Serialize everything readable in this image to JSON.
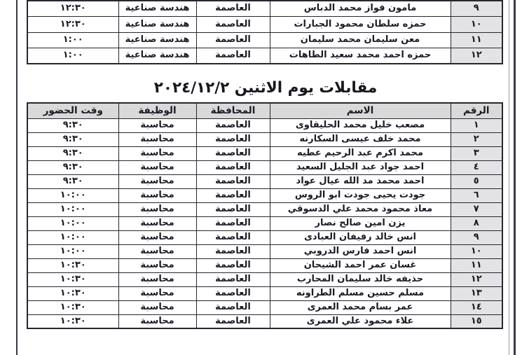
{
  "colors": {
    "border": "#26262e",
    "text": "#1b1b26",
    "header_bg": "#d9d9d9",
    "number_column_bg": "#e3e3e6",
    "page_frame": "#3a3a44"
  },
  "section_title": "مقابلات يوم الاثنين ٢٠٢٤/١٢/٢",
  "top_table": {
    "rows": [
      {
        "num": "٩",
        "name": "مامون فواز محمد الدباس",
        "governorate": "العاصمة",
        "job": "هندسة صناعية",
        "time": "١٢:٣٠"
      },
      {
        "num": "١٠",
        "name": "حمزه سلطان محمود الجبارات",
        "governorate": "العاصمة",
        "job": "هندسة صناعية",
        "time": "١٢:٣٠"
      },
      {
        "num": "١١",
        "name": "معن سليمان محمد سليمان",
        "governorate": "العاصمة",
        "job": "هندسة صناعية",
        "time": "١:٠٠"
      },
      {
        "num": "١٢",
        "name": "حمزه احمد محمد سعيد الطاهات",
        "governorate": "العاصمة",
        "job": "هندسة صناعية",
        "time": "١:٠٠"
      }
    ]
  },
  "main_table": {
    "headers": [
      "الرقم",
      "الاسم",
      "المحافظة",
      "الوظيفة",
      "وقت الحضور"
    ],
    "rows": [
      {
        "num": "١",
        "name": "مصعب خليل محمد الحليقاوى",
        "governorate": "العاصمة",
        "job": "محاسبة",
        "time": "٩:٣٠"
      },
      {
        "num": "٢",
        "name": "محمد خلف عيسى السكارنه",
        "governorate": "العاصمة",
        "job": "محاسبة",
        "time": "٩:٣٠"
      },
      {
        "num": "٣",
        "name": "محمد اكرم عبد الرحيم عطيه",
        "governorate": "العاصمة",
        "job": "محاسبة",
        "time": "٩:٣٠"
      },
      {
        "num": "٤",
        "name": "احمد جواد عبد الجليل السعيد",
        "governorate": "العاصمة",
        "job": "محاسبة",
        "time": "٩:٣٠"
      },
      {
        "num": "٥",
        "name": "احمد محمد مد الله عيال عواد",
        "governorate": "العاصمة",
        "job": "محاسبة",
        "time": "٩:٣٠"
      },
      {
        "num": "٦",
        "name": "جودت يحيى جودت ابو الروس",
        "governorate": "العاصمة",
        "job": "محاسبة",
        "time": "١٠:٠٠"
      },
      {
        "num": "٧",
        "name": "معاذ محمود محمد علي الدسوقي",
        "governorate": "العاصمة",
        "job": "محاسبة",
        "time": "١٠:٠٠"
      },
      {
        "num": "٨",
        "name": "يزن امين صالح نصار",
        "governorate": "العاصمة",
        "job": "محاسبة",
        "time": "١٠:٠٠"
      },
      {
        "num": "٩",
        "name": "انس خالد رفيفان العبادى",
        "governorate": "العاصمة",
        "job": "محاسبة",
        "time": "١٠:٠٠"
      },
      {
        "num": "١٠",
        "name": "انس احمد فارس الدروبي",
        "governorate": "العاصمة",
        "job": "محاسبة",
        "time": "١٠:٠٠"
      },
      {
        "num": "١١",
        "name": "غسان عمر احمد الشيحان",
        "governorate": "العاصمة",
        "job": "محاسبة",
        "time": "١٠:٣٠"
      },
      {
        "num": "١٢",
        "name": "حذيفه خالد سليمان المحارب",
        "governorate": "العاصمة",
        "job": "محاسبة",
        "time": "١٠:٣٠"
      },
      {
        "num": "١٣",
        "name": "مسلم حسين مسلم الطراونه",
        "governorate": "العاصمة",
        "job": "محاسبة",
        "time": "١٠:٣٠"
      },
      {
        "num": "١٤",
        "name": "عمر بسام محمد العمرى",
        "governorate": "العاصمة",
        "job": "محاسبة",
        "time": "١٠:٣٠"
      },
      {
        "num": "١٥",
        "name": "علاء محمود علي العمرى",
        "governorate": "العاصمة",
        "job": "محاسبة",
        "time": "١٠:٣٠"
      }
    ]
  }
}
